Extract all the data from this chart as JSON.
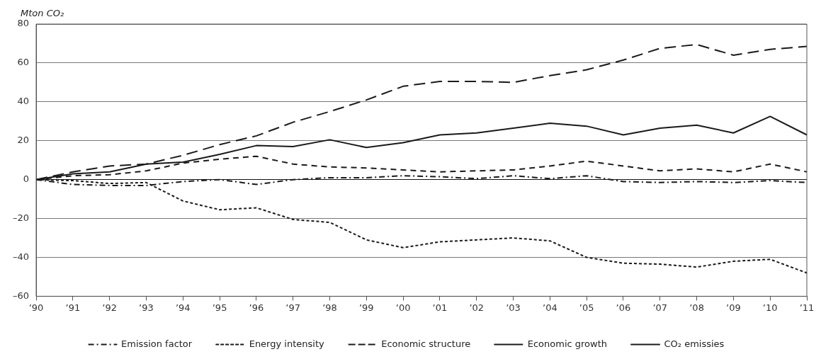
{
  "chart_data": {
    "type": "line",
    "ylabel": "Mton CO₂",
    "categories": [
      "’90",
      "’91",
      "’92",
      "’93",
      "’94",
      "’95",
      "’96",
      "’97",
      "’98",
      "’99",
      "’00",
      "’01",
      "’02",
      "’03",
      "’04",
      "’05",
      "’06",
      "’07",
      "’08",
      "’09",
      "’10",
      "’11"
    ],
    "series": [
      {
        "name": "Emission factor",
        "color": "#1a1a1a",
        "line_style": "dashdot",
        "values": [
          0,
          -2.5,
          -3,
          -3,
          -1,
          0,
          -2.5,
          0,
          1,
          1,
          2,
          1.5,
          0.5,
          2,
          0.5,
          2,
          -1,
          -1.5,
          -1,
          -1.5,
          -0.5,
          -1.5
        ]
      },
      {
        "name": "Energy intensity",
        "color": "#1a1a1a",
        "line_style": "dotted",
        "values": [
          0,
          -0.5,
          -2,
          -1.5,
          -11,
          -15.5,
          -14.5,
          -20.5,
          -22,
          -31,
          -35,
          -32,
          -31,
          -30,
          -31.5,
          -40,
          -43,
          -43.5,
          -45,
          -42,
          -41,
          -48
        ]
      },
      {
        "name": "Economic structure",
        "color": "#1a1a1a",
        "line_style": "dashed",
        "values": [
          0,
          2,
          2.5,
          4.5,
          8.5,
          10.5,
          12,
          8,
          6.5,
          6,
          5,
          4,
          4.5,
          5,
          7,
          9.5,
          7,
          4.5,
          5.5,
          4,
          8,
          4
        ]
      },
      {
        "name": "Economic growth",
        "color": "#1a1a1a",
        "line_style": "longdash",
        "values": [
          0,
          4,
          7,
          8,
          12.5,
          18,
          22.5,
          29.5,
          35,
          41,
          48,
          50.5,
          50.5,
          50,
          53.5,
          56.5,
          61.5,
          67.5,
          69.5,
          64,
          67,
          68.5
        ]
      },
      {
        "name": "CO₂ emissies",
        "color": "#1a1a1a",
        "line_style": "solid",
        "values": [
          0,
          3,
          4,
          8,
          9,
          13,
          17.5,
          17,
          20.5,
          16.5,
          19,
          23,
          24,
          26.5,
          29,
          27.5,
          23,
          26.5,
          28,
          24,
          32.5,
          23
        ]
      }
    ],
    "ylim": [
      -60,
      80
    ],
    "yticks": [
      {
        "value": -60,
        "label": "–60"
      },
      {
        "value": -40,
        "label": "–40"
      },
      {
        "value": -20,
        "label": "–20"
      },
      0,
      20,
      40,
      60,
      80
    ],
    "grid": "y",
    "legend": "bottom",
    "marker": "none"
  }
}
